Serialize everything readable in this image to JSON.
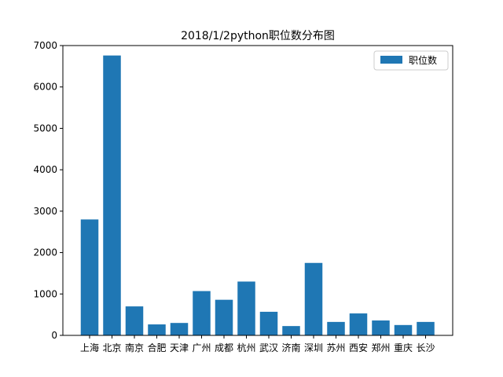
{
  "chart_data": {
    "type": "bar",
    "title": "2018/1/2python职位数分布图",
    "xlabel": "",
    "ylabel": "",
    "ylim": [
      0,
      7000
    ],
    "yticks": [
      0,
      1000,
      2000,
      3000,
      4000,
      5000,
      6000,
      7000
    ],
    "categories": [
      "上海",
      "北京",
      "南京",
      "合肥",
      "天津",
      "广州",
      "成都",
      "杭州",
      "武汉",
      "济南",
      "深圳",
      "苏州",
      "西安",
      "郑州",
      "重庆",
      "长沙"
    ],
    "series": [
      {
        "name": "职位数",
        "color": "#1f77b4",
        "values": [
          2800,
          6760,
          700,
          265,
          300,
          1070,
          860,
          1300,
          570,
          225,
          1750,
          325,
          530,
          360,
          250,
          325
        ]
      }
    ],
    "legend_position": "top-right",
    "grid": false
  }
}
